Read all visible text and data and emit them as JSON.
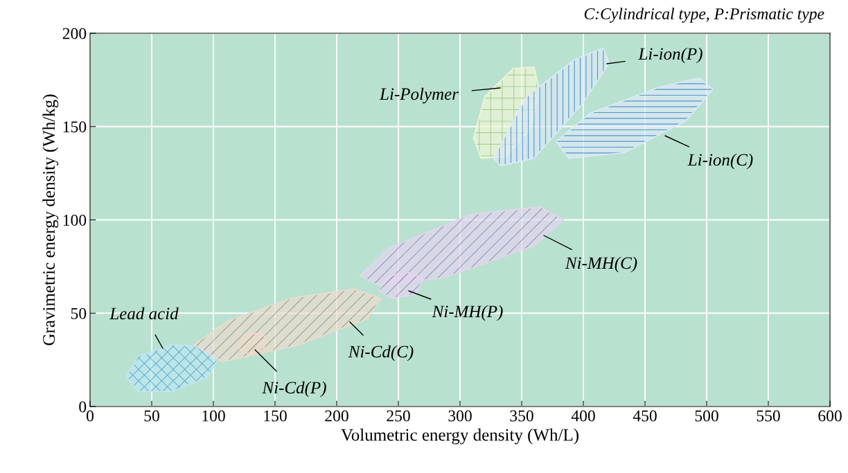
{
  "chart_data": {
    "type": "area",
    "xlabel": "Volumetric energy density (Wh/L)",
    "ylabel": "Gravimetric energy density (Wh/kg)",
    "annotations": [
      "C:Cylindrical type, P:Prismatic type"
    ],
    "xlim": [
      0,
      600
    ],
    "xticks": [
      0,
      50,
      100,
      150,
      200,
      250,
      300,
      350,
      400,
      450,
      500,
      550,
      600
    ],
    "ylim": [
      0,
      200
    ],
    "yticks": [
      0,
      50,
      100,
      150,
      200
    ],
    "grid": true,
    "legend": false,
    "series": [
      {
        "name": "Lead acid",
        "color": "#bfe6f2",
        "x": [
          29,
          39,
          67,
          96,
          105,
          96,
          67,
          39
        ],
        "values": [
          16,
          27,
          33,
          32,
          27,
          16,
          8,
          8
        ]
      },
      {
        "name": "Ni-Cd(C)",
        "color": "#eadccd",
        "x": [
          84,
          112,
          163,
          214,
          236,
          225,
          169,
          107
        ],
        "values": [
          33,
          46,
          58,
          63,
          58,
          47,
          33,
          24
        ]
      },
      {
        "name": "Ni-Cd(P)",
        "color": "#eadccd",
        "x": [
          119,
          126,
          139,
          144,
          140,
          129
        ],
        "values": [
          32,
          39,
          39,
          36,
          30,
          28
        ]
      },
      {
        "name": "Ni-MH(C)",
        "color": "#e2d6ee",
        "x": [
          219,
          242,
          309,
          365,
          384,
          360,
          287,
          233
        ],
        "values": [
          70,
          85,
          103,
          107,
          100,
          86,
          69,
          65
        ]
      },
      {
        "name": "Ni-MH(P)",
        "color": "#e2d6ee",
        "x": [
          234,
          242,
          261,
          270,
          264,
          244
        ],
        "values": [
          62,
          70,
          72,
          68,
          60,
          58
        ]
      },
      {
        "name": "Li-Polymer",
        "color": "#f0f6d8",
        "x": [
          311,
          320,
          343,
          360,
          364,
          357,
          337,
          317
        ],
        "values": [
          144,
          166,
          181,
          182,
          170,
          149,
          134,
          133
        ]
      },
      {
        "name": "Li-ion(P)",
        "color": "#dbeaf8",
        "x": [
          327,
          354,
          393,
          416,
          421,
          399,
          360,
          333
        ],
        "values": [
          133,
          166,
          186,
          192,
          184,
          162,
          133,
          129
        ]
      },
      {
        "name": "Li-ion(C)",
        "color": "#dbeaf8",
        "x": [
          378,
          405,
          461,
          494,
          505,
          483,
          433,
          388
        ],
        "values": [
          142,
          157,
          171,
          176,
          170,
          153,
          136,
          133
        ]
      }
    ]
  }
}
